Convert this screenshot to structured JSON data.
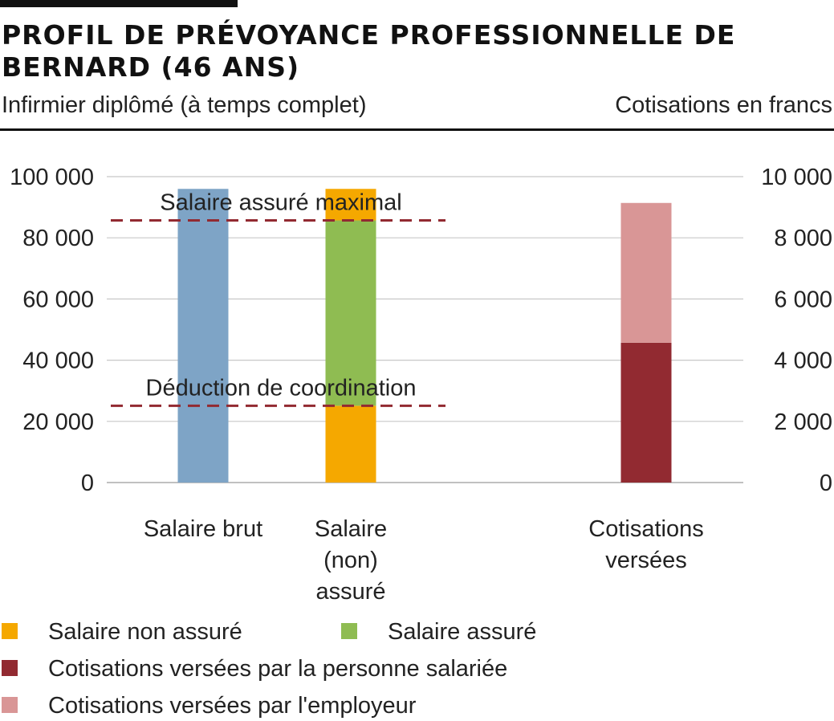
{
  "header": {
    "title": "PROFIL DE PRÉVOYANCE PROFESSIONNELLE DE BERNARD (46 ANS)",
    "subtitle": "Infirmier diplômé (à temps complet)",
    "unit_label": "Cotisations en francs"
  },
  "legend": [
    {
      "label": "Salaire non assuré",
      "color": "#f5a800"
    },
    {
      "label": "Salaire assuré",
      "color": "#8fbc52"
    },
    {
      "label": "Cotisations versées par la personne salariée",
      "color": "#922a31"
    },
    {
      "label": "Cotisations versées par l'employeur",
      "color": "#d99696"
    }
  ],
  "chart_data": {
    "type": "bar",
    "stacked": true,
    "grid": true,
    "left_axis": {
      "range": [
        0,
        100000
      ],
      "ticks": [
        "0",
        "20 000",
        "40 000",
        "60 000",
        "80 000",
        "100 000"
      ],
      "tick_values": [
        0,
        20000,
        40000,
        60000,
        80000,
        100000
      ]
    },
    "right_axis": {
      "range": [
        0,
        10000
      ],
      "ticks": [
        "0",
        "2 000",
        "4 000",
        "6 000",
        "8 000",
        "10 000"
      ],
      "tick_values": [
        0,
        2000,
        4000,
        6000,
        8000,
        10000
      ]
    },
    "categories": [
      {
        "label_lines": [
          "Salaire brut"
        ],
        "axis": "left",
        "segments": [
          {
            "series": "Salaire brut",
            "value": 96000,
            "color": "#7ea4c6"
          }
        ]
      },
      {
        "label_lines": [
          "Salaire",
          "(non)",
          "assuré"
        ],
        "axis": "left",
        "segments": [
          {
            "series": "Salaire non assuré",
            "value": 25100,
            "color": "#f5a800"
          },
          {
            "series": "Salaire assuré",
            "value": 60600,
            "color": "#8fbc52"
          },
          {
            "series": "Salaire non assuré",
            "value": 10300,
            "color": "#f5a800"
          }
        ]
      },
      {
        "label_lines": [
          "Cotisations",
          "versées"
        ],
        "axis": "right",
        "segments": [
          {
            "series": "Cotisations versées par la personne salariée",
            "value": 4570,
            "color": "#922a31"
          },
          {
            "series": "Cotisations versées par l'employeur",
            "value": 4570,
            "color": "#d99696"
          }
        ]
      }
    ],
    "reference_lines": [
      {
        "label": "Salaire assuré maximal",
        "value": 85700,
        "color": "#922a31"
      },
      {
        "label": "Déduction de coordination",
        "value": 25100,
        "color": "#922a31"
      }
    ]
  }
}
